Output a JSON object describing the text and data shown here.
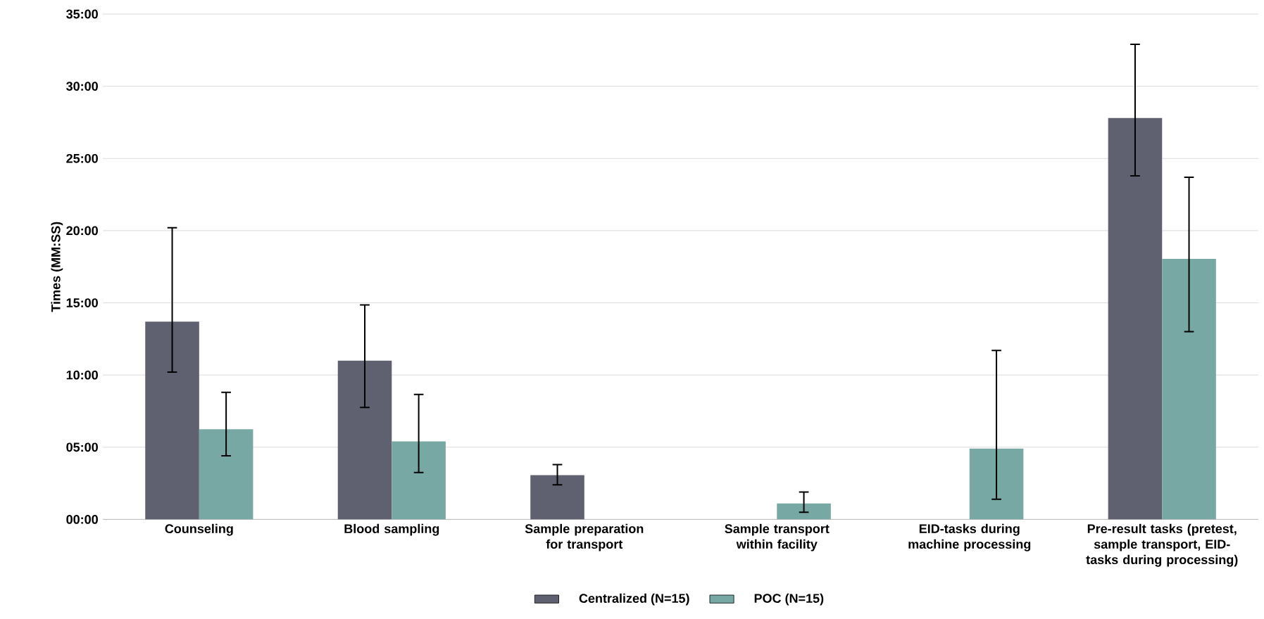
{
  "chart_data": {
    "type": "bar",
    "ylabel": "Times (MM:SS)",
    "categories": [
      "Counseling",
      "Blood sampling",
      "Sample preparation for transport",
      "Sample transport within facility",
      "EID-tasks during machine processing",
      "Pre-result tasks (pretest, sample transport, EID-tasks during processing)"
    ],
    "series": [
      {
        "name": "Centralized (N=15)",
        "color": "#5f6170",
        "values": [
          13.7,
          11.0,
          3.07,
          null,
          null,
          27.8
        ],
        "errors": [
          [
            10.2,
            20.2
          ],
          [
            7.75,
            14.85
          ],
          [
            2.4,
            3.8
          ],
          null,
          null,
          [
            23.8,
            32.9
          ]
        ]
      },
      {
        "name": "POC (N=15)",
        "color": "#78a8a3",
        "values": [
          6.24,
          5.4,
          null,
          1.1,
          4.9,
          18.05
        ],
        "errors": [
          [
            4.4,
            8.8
          ],
          [
            3.25,
            8.65
          ],
          null,
          [
            0.5,
            1.9
          ],
          [
            1.4,
            11.7
          ],
          [
            13.0,
            23.7
          ]
        ]
      }
    ],
    "ylim": [
      0,
      35
    ],
    "yticks": [
      {
        "value": 0,
        "label": "00:00"
      },
      {
        "value": 5,
        "label": "05:00"
      },
      {
        "value": 10,
        "label": "10:00"
      },
      {
        "value": 15,
        "label": "15:00"
      },
      {
        "value": 20,
        "label": "20:00"
      },
      {
        "value": 25,
        "label": "25:00"
      },
      {
        "value": 30,
        "label": "30:00"
      },
      {
        "value": 35,
        "label": "35:00"
      }
    ],
    "grid": "y",
    "legend": "bottom"
  }
}
